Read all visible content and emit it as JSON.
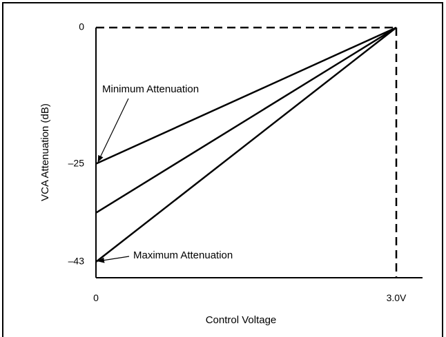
{
  "chart_data": {
    "type": "line",
    "xlabel": "Control Voltage",
    "ylabel": "VCA Attenuation (dB)",
    "x_ticks": [
      {
        "value": 0,
        "label": "0"
      },
      {
        "value": 3.0,
        "label": "3.0V"
      }
    ],
    "y_ticks": [
      {
        "value": 0,
        "label": "0"
      },
      {
        "value": -25,
        "label": "–25"
      },
      {
        "value": -43,
        "label": "–43"
      }
    ],
    "xlim": [
      0,
      3.0
    ],
    "ylim": [
      -43,
      0
    ],
    "grid": false,
    "series": [
      {
        "x": [
          0,
          3.0
        ],
        "y": [
          -25,
          0
        ]
      },
      {
        "x": [
          0,
          3.0
        ],
        "y": [
          -34,
          0
        ]
      },
      {
        "x": [
          0,
          3.0
        ],
        "y": [
          -43,
          0
        ]
      }
    ],
    "bounds": {
      "x_max": 3.0,
      "y_top": 0,
      "style": "dashed"
    },
    "annotations": [
      {
        "text": "Minimum Attenuation",
        "target": {
          "x": 0,
          "y": -25
        }
      },
      {
        "text": "Maximum Attenuation",
        "target": {
          "x": 0,
          "y": -43
        }
      }
    ]
  }
}
